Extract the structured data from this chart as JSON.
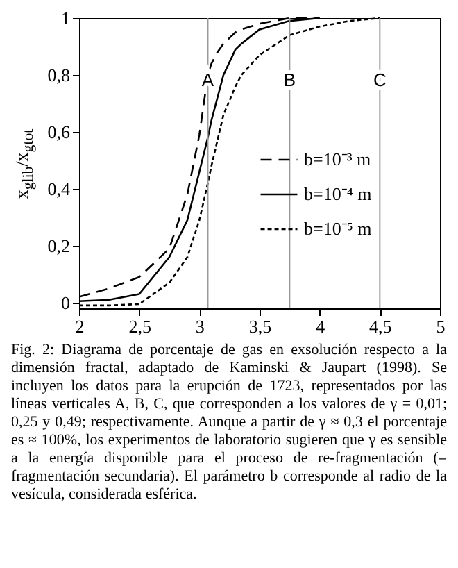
{
  "chart_data": {
    "type": "line",
    "ylabel": "x$_{glib}$/x$_{gtot}$",
    "x": [
      2,
      2.25,
      2.5,
      2.75,
      2.9,
      3.0,
      3.07,
      3.1,
      3.15,
      3.2,
      3.3,
      3.35,
      3.5,
      3.75,
      4,
      4.25,
      4.5
    ],
    "series": [
      {
        "name": "b=10⁻³ m",
        "color": "#000000",
        "line_style": "dashed",
        "values": [
          0.02,
          0.05,
          0.09,
          0.19,
          0.38,
          0.59,
          0.8,
          0.84,
          0.88,
          0.91,
          0.95,
          0.96,
          0.98,
          1,
          1,
          null,
          null
        ]
      },
      {
        "name": "b=10⁻⁴ m",
        "color": "#000000",
        "line_style": "solid",
        "values": [
          0.005,
          0.01,
          0.03,
          0.16,
          0.29,
          0.46,
          0.58,
          0.64,
          0.72,
          0.8,
          0.89,
          0.91,
          0.96,
          0.99,
          1,
          null,
          null
        ]
      },
      {
        "name": "b=10⁻⁵ m",
        "color": "#000000",
        "line_style": "dotted",
        "values": [
          -0.01,
          -0.01,
          -0.005,
          0.07,
          0.16,
          0.29,
          0.42,
          0.48,
          0.57,
          0.66,
          0.76,
          0.8,
          0.87,
          0.94,
          0.97,
          0.99,
          1
        ]
      }
    ],
    "xlim": [
      2,
      5
    ],
    "ylim": [
      -0.02,
      1
    ],
    "xticks": [
      2,
      {
        "value": 2.5,
        "label": "2,5"
      },
      3,
      {
        "value": 3.5,
        "label": "3,5"
      },
      4,
      {
        "value": 4.5,
        "label": "4,5"
      },
      5
    ],
    "yticks": [
      0,
      {
        "value": 0.2,
        "label": "0,2"
      },
      {
        "value": 0.4,
        "label": "0,4"
      },
      {
        "value": 0.6,
        "label": "0,6"
      },
      {
        "value": 0.8,
        "label": "0,8"
      },
      1
    ],
    "ref_lines": [
      {
        "axis": "x",
        "value": 3.07,
        "label": "A",
        "color": "#999999"
      },
      {
        "axis": "x",
        "value": 3.75,
        "label": "B",
        "color": "#999999"
      },
      {
        "axis": "x",
        "value": 4.5,
        "label": "C",
        "color": "#999999"
      }
    ],
    "grid": false,
    "legend": "right",
    "marker": "none",
    "annotations": [
      "Fig. 2: Diagrama de porcentaje de gas en exsolución respecto a la dimensión fractal, adaptado de Kaminski & Jaupart (1998). Se incluyen los datos para la erupción de 1723, representados por las líneas verticales A, B, C, que corresponden a los valores de γ = 0,01; 0,25 y 0,49; respectivamente. Aunque a partir de γ ≈ 0,3 el porcentaje es ≈ 100%, los experimentos de laboratorio sugieren que γ es sensible a la energía disponible para el proceso de re-fragmentación (= fragmentación secundaria). El parámetro b corresponde al radio de la vesícula, considerada esférica."
    ]
  }
}
